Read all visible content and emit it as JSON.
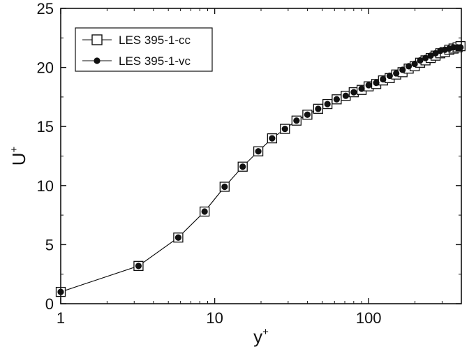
{
  "chart_data": {
    "type": "line",
    "xscale": "log",
    "xlim": [
      1,
      400
    ],
    "ylim": [
      0,
      25
    ],
    "xlabel": "y",
    "xlabel_sup": "+",
    "ylabel": "U",
    "ylabel_sup": "+",
    "xticks": [
      1,
      10,
      100
    ],
    "xtick_labels": [
      "1",
      "10",
      "100"
    ],
    "yticks": [
      0,
      5,
      10,
      15,
      20,
      25
    ],
    "ytick_labels": [
      "0",
      "5",
      "10",
      "15",
      "20",
      "25"
    ],
    "grid": false,
    "legend_position": "top-left",
    "series": [
      {
        "name": "LES 395-1-cc",
        "marker": "open-square",
        "color": "#111111",
        "x": [
          1.0,
          3.2,
          5.8,
          8.6,
          11.6,
          15.2,
          19.2,
          23.6,
          28.6,
          34.0,
          40.0,
          47.0,
          54.0,
          62.0,
          71.0,
          80.0,
          90.0,
          100.0,
          112.0,
          124.0,
          137.0,
          151.0,
          166.0,
          182.0,
          199.0,
          216.0,
          234.0,
          253.0,
          272.0,
          292.0,
          313.0,
          334.0,
          356.0,
          378.0,
          395.0
        ],
        "y": [
          1.0,
          3.2,
          5.6,
          7.8,
          9.9,
          11.6,
          12.9,
          14.0,
          14.8,
          15.5,
          16.0,
          16.5,
          16.9,
          17.3,
          17.6,
          17.9,
          18.1,
          18.4,
          18.6,
          18.9,
          19.1,
          19.4,
          19.6,
          19.9,
          20.1,
          20.4,
          20.6,
          20.8,
          21.0,
          21.2,
          21.3,
          21.5,
          21.6,
          21.7,
          21.8
        ]
      },
      {
        "name": "LES 395-1-vc",
        "marker": "filled-circle",
        "color": "#111111",
        "x": [
          1.0,
          3.2,
          5.8,
          8.6,
          11.6,
          15.2,
          19.2,
          23.6,
          28.6,
          34.0,
          40.0,
          47.0,
          54.0,
          62.0,
          71.0,
          80.0,
          90.0,
          100.0,
          112.0,
          124.0,
          137.0,
          151.0,
          166.0,
          182.0,
          199.0,
          216.0,
          234.0,
          253.0,
          272.0,
          292.0,
          313.0,
          334.0,
          356.0,
          378.0,
          395.0
        ],
        "y": [
          1.0,
          3.2,
          5.6,
          7.8,
          9.9,
          11.6,
          12.9,
          14.0,
          14.8,
          15.5,
          16.0,
          16.5,
          16.9,
          17.3,
          17.6,
          17.9,
          18.2,
          18.5,
          18.7,
          19.0,
          19.3,
          19.5,
          19.8,
          20.1,
          20.3,
          20.6,
          20.8,
          21.0,
          21.2,
          21.4,
          21.5,
          21.6,
          21.7,
          21.7,
          21.7
        ]
      }
    ]
  }
}
